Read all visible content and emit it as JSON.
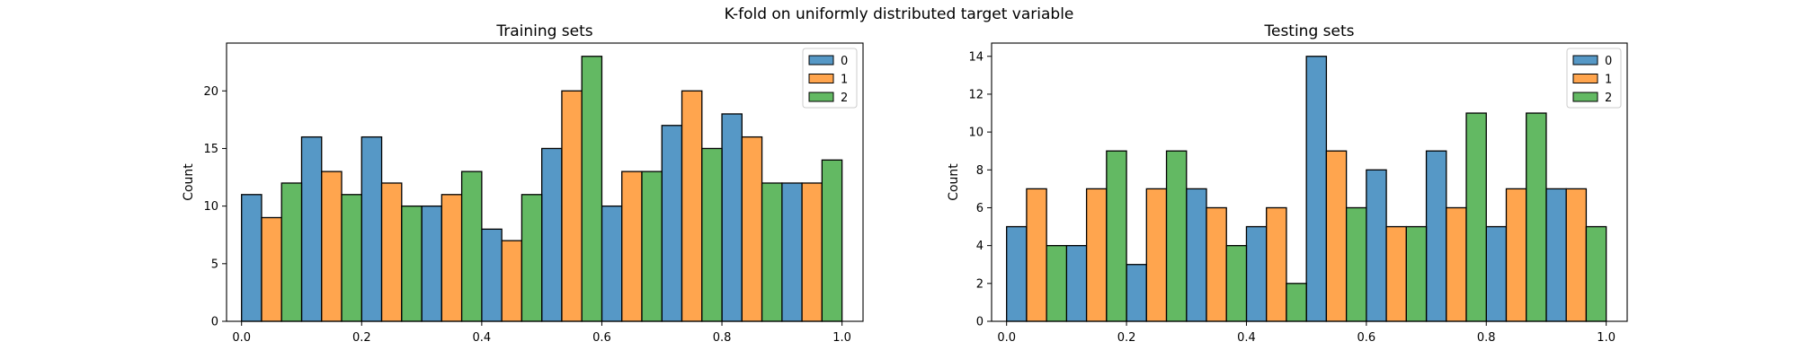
{
  "figure": {
    "suptitle": "K-fold on uniformly distributed target variable"
  },
  "colors": {
    "fold0": "#5698c6",
    "fold1": "#ffa54e",
    "fold2": "#63b963",
    "edge": "#000000"
  },
  "chart_data": [
    {
      "type": "bar",
      "title": "Training sets",
      "xlabel": "",
      "ylabel": "Count",
      "xlim": [
        -0.025,
        1.035
      ],
      "ylim": [
        0,
        24.15
      ],
      "xticks": [
        0.0,
        0.2,
        0.4,
        0.6,
        0.8,
        1.0
      ],
      "xtick_labels": [
        "0.0",
        "0.2",
        "0.4",
        "0.6",
        "0.8",
        "1.0"
      ],
      "yticks": [
        0,
        5,
        10,
        15,
        20
      ],
      "ytick_labels": [
        "0",
        "5",
        "10",
        "15",
        "20"
      ],
      "categories": [
        "0.0-0.1",
        "0.1-0.2",
        "0.2-0.3",
        "0.3-0.4",
        "0.4-0.5",
        "0.5-0.6",
        "0.6-0.7",
        "0.7-0.8",
        "0.8-0.9",
        "0.9-1.0"
      ],
      "bin_edges": [
        0.0,
        0.1,
        0.2,
        0.3,
        0.4,
        0.5,
        0.6,
        0.7,
        0.8,
        0.9,
        1.0
      ],
      "series": [
        {
          "name": "0",
          "values": [
            11,
            16,
            16,
            10,
            8,
            15,
            10,
            17,
            18,
            12
          ]
        },
        {
          "name": "1",
          "values": [
            9,
            13,
            12,
            11,
            7,
            20,
            13,
            20,
            16,
            12
          ]
        },
        {
          "name": "2",
          "values": [
            12,
            11,
            10,
            13,
            11,
            23,
            13,
            15,
            12,
            14
          ]
        }
      ],
      "legend": {
        "placement": "top-right",
        "entries": [
          "0",
          "1",
          "2"
        ]
      }
    },
    {
      "type": "bar",
      "title": "Testing sets",
      "xlabel": "",
      "ylabel": "Count",
      "xlim": [
        -0.025,
        1.035
      ],
      "ylim": [
        0,
        14.7
      ],
      "xticks": [
        0.0,
        0.2,
        0.4,
        0.6,
        0.8,
        1.0
      ],
      "xtick_labels": [
        "0.0",
        "0.2",
        "0.4",
        "0.6",
        "0.8",
        "1.0"
      ],
      "yticks": [
        0,
        2,
        4,
        6,
        8,
        10,
        12,
        14
      ],
      "ytick_labels": [
        "0",
        "2",
        "4",
        "6",
        "8",
        "10",
        "12",
        "14"
      ],
      "categories": [
        "0.0-0.1",
        "0.1-0.2",
        "0.2-0.3",
        "0.3-0.4",
        "0.4-0.5",
        "0.5-0.6",
        "0.6-0.7",
        "0.7-0.8",
        "0.8-0.9",
        "0.9-1.0"
      ],
      "bin_edges": [
        0.0,
        0.1,
        0.2,
        0.3,
        0.4,
        0.5,
        0.6,
        0.7,
        0.8,
        0.9,
        1.0
      ],
      "series": [
        {
          "name": "0",
          "values": [
            5,
            4,
            3,
            7,
            5,
            14,
            8,
            9,
            5,
            7
          ]
        },
        {
          "name": "1",
          "values": [
            7,
            7,
            7,
            6,
            6,
            9,
            5,
            6,
            7,
            7
          ]
        },
        {
          "name": "2",
          "values": [
            4,
            9,
            9,
            4,
            2,
            6,
            5,
            11,
            11,
            5
          ]
        }
      ],
      "legend": {
        "placement": "top-right",
        "entries": [
          "0",
          "1",
          "2"
        ]
      }
    }
  ]
}
